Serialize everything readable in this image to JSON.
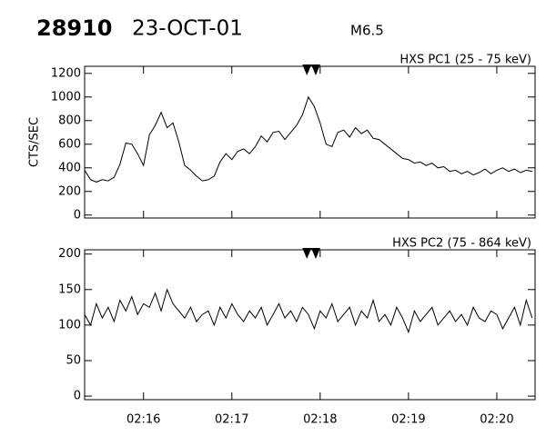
{
  "header": {
    "id": "28910",
    "date": "23-OCT-01",
    "class": "M6.5"
  },
  "chart_data": [
    {
      "type": "line",
      "ylabel": "CTS/SEC",
      "x": [
        8120,
        8124,
        8128,
        8132,
        8136,
        8140,
        8144,
        8148,
        8152,
        8156,
        8160,
        8164,
        8168,
        8172,
        8176,
        8180,
        8184,
        8188,
        8192,
        8196,
        8200,
        8204,
        8208,
        8212,
        8216,
        8220,
        8224,
        8228,
        8232,
        8236,
        8240,
        8244,
        8248,
        8252,
        8256,
        8260,
        8264,
        8268,
        8272,
        8276,
        8280,
        8284,
        8288,
        8292,
        8296,
        8300,
        8304,
        8308,
        8312,
        8316,
        8320,
        8324,
        8328,
        8332,
        8336,
        8340,
        8344,
        8348,
        8352,
        8356,
        8360,
        8364,
        8368,
        8372,
        8376,
        8380,
        8384,
        8388,
        8392,
        8396,
        8400,
        8404,
        8408,
        8412,
        8416,
        8420,
        8424
      ],
      "series": [
        {
          "name": "HXS PC1 (25 - 75 keV)",
          "color": "#000000",
          "values": [
            380,
            300,
            280,
            300,
            290,
            320,
            430,
            610,
            600,
            520,
            420,
            680,
            760,
            870,
            740,
            780,
            620,
            420,
            380,
            330,
            290,
            300,
            330,
            450,
            520,
            470,
            540,
            560,
            520,
            580,
            670,
            620,
            700,
            710,
            640,
            700,
            760,
            850,
            1000,
            920,
            780,
            600,
            580,
            700,
            720,
            660,
            740,
            690,
            720,
            650,
            640,
            600,
            560,
            520,
            480,
            470,
            440,
            450,
            420,
            440,
            400,
            410,
            370,
            380,
            350,
            370,
            340,
            360,
            390,
            350,
            380,
            400,
            370,
            390,
            360,
            380,
            370
          ]
        }
      ],
      "xlim": [
        8120,
        8426
      ],
      "xticks": [
        8160,
        8220,
        8280,
        8340,
        8400
      ],
      "ylim": [
        -25,
        1260
      ],
      "yticks": [
        0,
        200,
        400,
        600,
        800,
        1000,
        1200
      ],
      "markers": [
        8271,
        8277
      ]
    },
    {
      "type": "line",
      "x": [
        8120,
        8124,
        8128,
        8132,
        8136,
        8140,
        8144,
        8148,
        8152,
        8156,
        8160,
        8164,
        8168,
        8172,
        8176,
        8180,
        8184,
        8188,
        8192,
        8196,
        8200,
        8204,
        8208,
        8212,
        8216,
        8220,
        8224,
        8228,
        8232,
        8236,
        8240,
        8244,
        8248,
        8252,
        8256,
        8260,
        8264,
        8268,
        8272,
        8276,
        8280,
        8284,
        8288,
        8292,
        8296,
        8300,
        8304,
        8308,
        8312,
        8316,
        8320,
        8324,
        8328,
        8332,
        8336,
        8340,
        8344,
        8348,
        8352,
        8356,
        8360,
        8364,
        8368,
        8372,
        8376,
        8380,
        8384,
        8388,
        8392,
        8396,
        8400,
        8404,
        8408,
        8412,
        8416,
        8420,
        8424
      ],
      "series": [
        {
          "name": "HXS PC2 (75 - 864 keV)",
          "color": "#000000",
          "values": [
            115,
            100,
            130,
            110,
            125,
            105,
            135,
            120,
            140,
            115,
            130,
            125,
            145,
            120,
            150,
            130,
            120,
            110,
            125,
            105,
            115,
            120,
            100,
            125,
            110,
            130,
            115,
            105,
            120,
            110,
            125,
            100,
            115,
            130,
            110,
            120,
            105,
            125,
            115,
            95,
            120,
            110,
            130,
            105,
            115,
            125,
            100,
            120,
            110,
            135,
            105,
            115,
            100,
            125,
            110,
            90,
            120,
            105,
            115,
            125,
            100,
            110,
            120,
            105,
            115,
            100,
            125,
            110,
            105,
            120,
            115,
            95,
            110,
            125,
            100,
            135,
            110
          ]
        }
      ],
      "xlim": [
        8120,
        8426
      ],
      "xticks": [
        {
          "value": 8160,
          "label": "02:16"
        },
        {
          "value": 8220,
          "label": "02:17"
        },
        {
          "value": 8280,
          "label": "02:18"
        },
        {
          "value": 8340,
          "label": "02:19"
        },
        {
          "value": 8400,
          "label": "02:20"
        }
      ],
      "ylim": [
        -5,
        206
      ],
      "yticks": [
        0,
        50,
        100,
        150,
        200
      ],
      "markers": [
        8271,
        8277
      ]
    }
  ]
}
